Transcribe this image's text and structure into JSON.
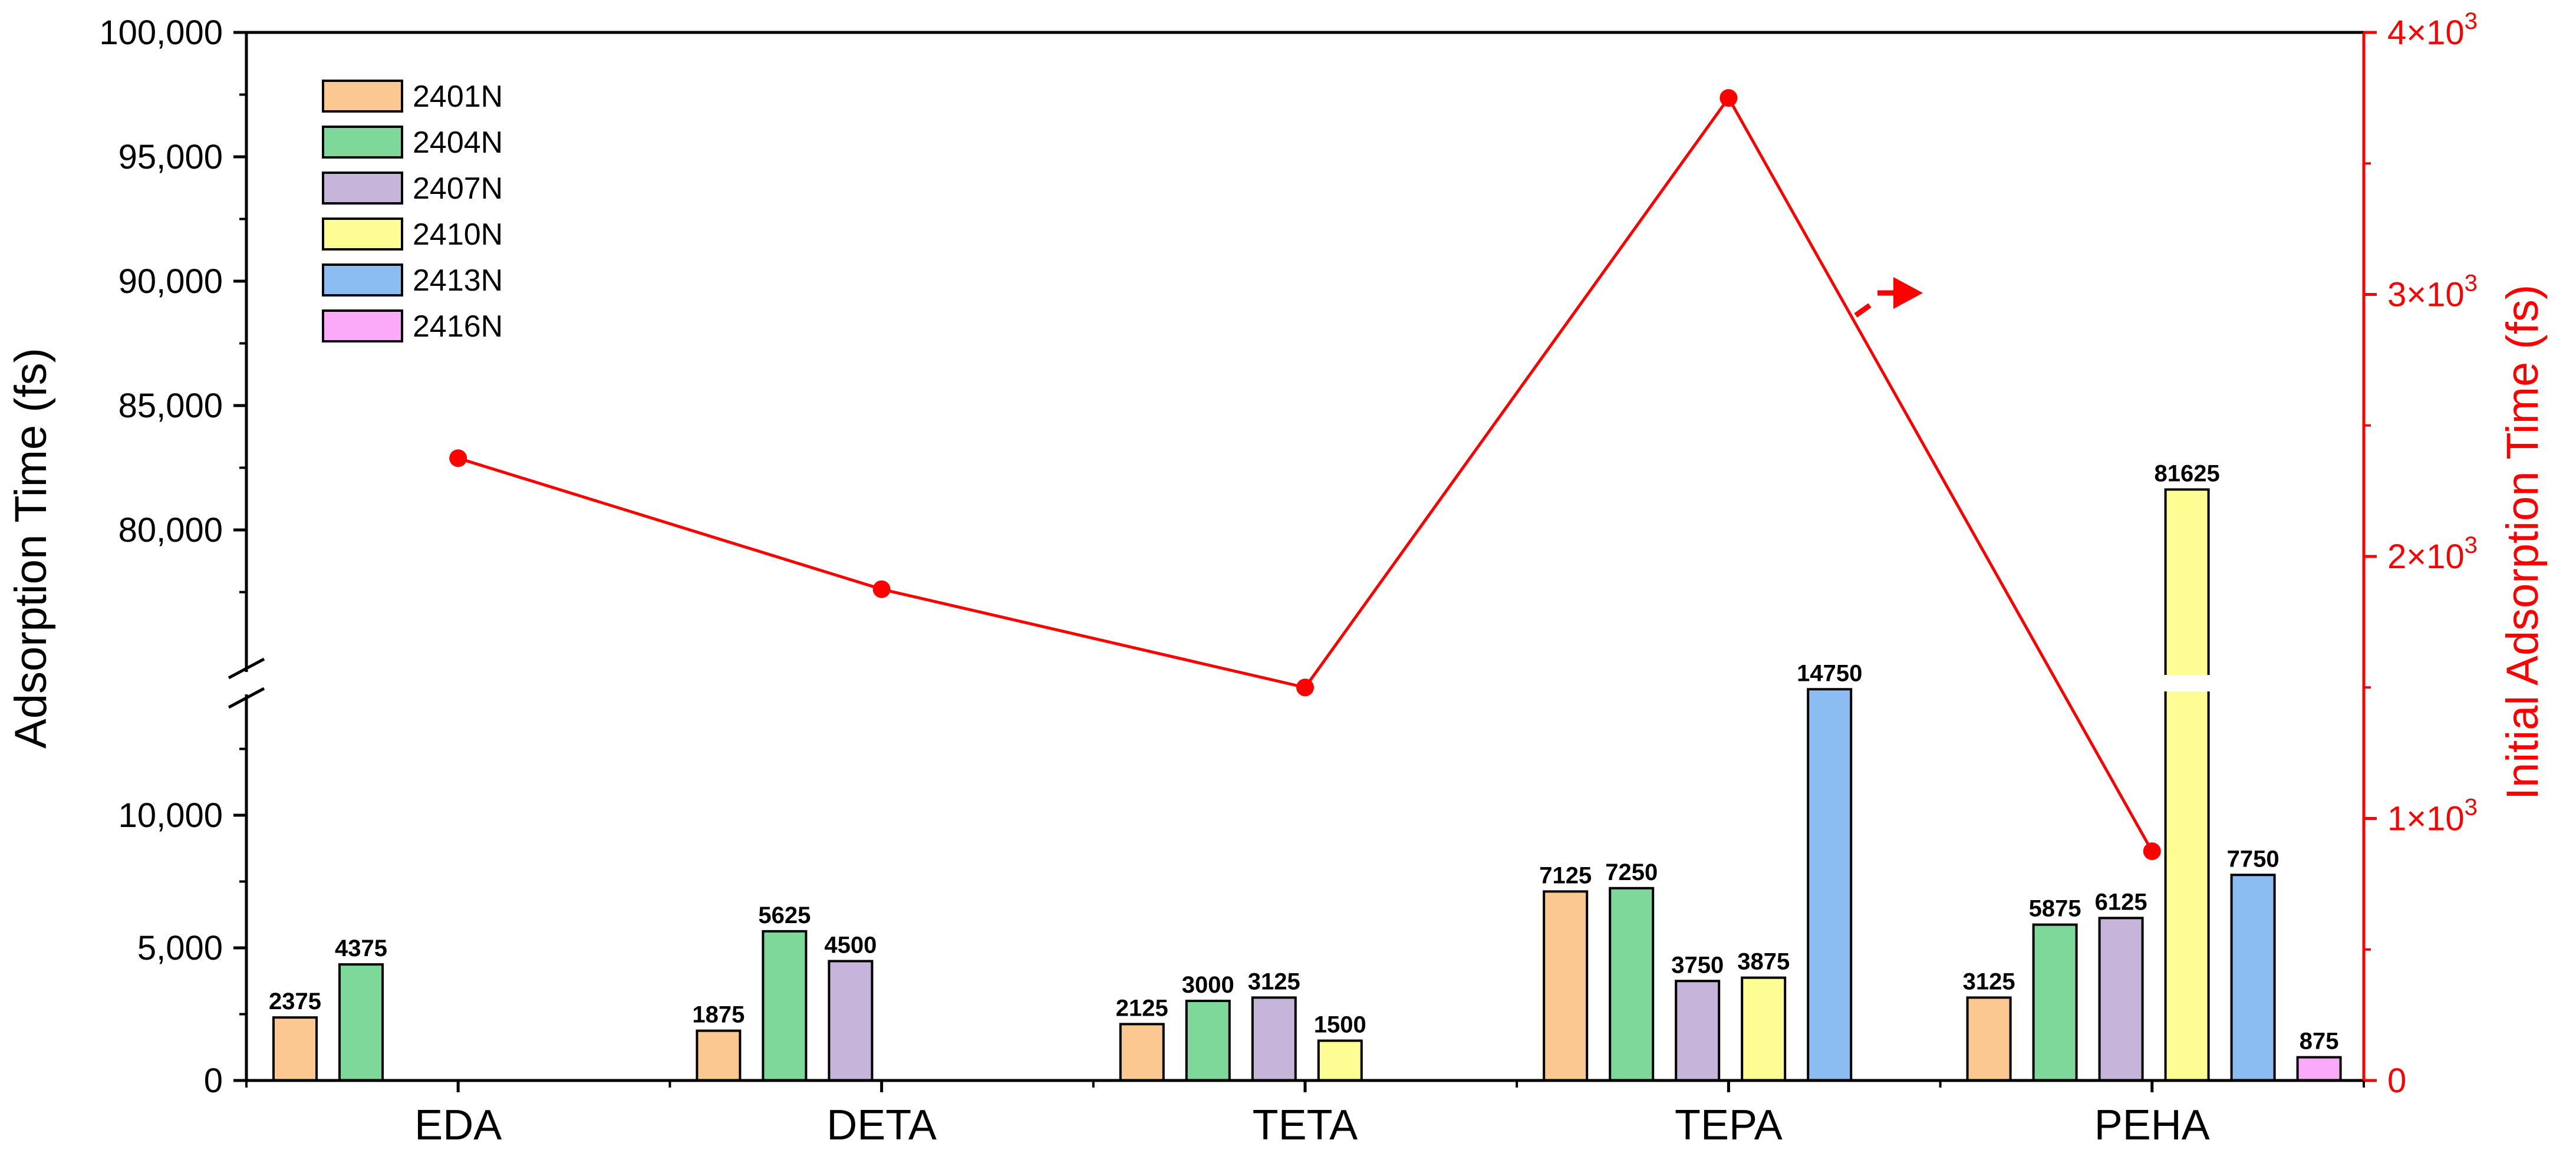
{
  "chart_data": {
    "type": "bar",
    "categories": [
      "EDA",
      "DETA",
      "TETA",
      "TEPA",
      "PEHA"
    ],
    "ylabel": "Adsorption Time (fs)",
    "y2label": "Initial Adsorption Time (fs)",
    "y_lower_range": [
      0,
      15000
    ],
    "y_upper_range": [
      75000,
      100000
    ],
    "y2_range": [
      0,
      4000
    ],
    "left_ticks": [
      {
        "value": 0,
        "label": "0"
      },
      {
        "value": 5000,
        "label": "5,000"
      },
      {
        "value": 10000,
        "label": "10,000"
      },
      {
        "value": 80000,
        "label": "80,000"
      },
      {
        "value": 85000,
        "label": "85,000"
      },
      {
        "value": 90000,
        "label": "90,000"
      },
      {
        "value": 95000,
        "label": "95,000"
      },
      {
        "value": 100000,
        "label": "100,000"
      }
    ],
    "right_ticks": [
      {
        "value": 0,
        "mantissa": "0",
        "exp": ""
      },
      {
        "value": 1000,
        "mantissa": "1×10",
        "exp": "3"
      },
      {
        "value": 2000,
        "mantissa": "2×10",
        "exp": "3"
      },
      {
        "value": 3000,
        "mantissa": "3×10",
        "exp": "3"
      },
      {
        "value": 4000,
        "mantissa": "4×10",
        "exp": "3"
      }
    ],
    "series": [
      {
        "name": "2401N",
        "color": "#fcc891",
        "values": [
          2375,
          1875,
          2125,
          7125,
          3125
        ]
      },
      {
        "name": "2404N",
        "color": "#7dd89a",
        "values": [
          4375,
          5625,
          3000,
          7250,
          5875
        ]
      },
      {
        "name": "2407N",
        "color": "#c6b4da",
        "values": [
          null,
          4500,
          3125,
          3750,
          6125
        ]
      },
      {
        "name": "2410N",
        "color": "#fdfd93",
        "values": [
          null,
          null,
          1500,
          3875,
          81625
        ]
      },
      {
        "name": "2413N",
        "color": "#8cbdf2",
        "values": [
          null,
          null,
          null,
          14750,
          7750
        ]
      },
      {
        "name": "2416N",
        "color": "#fbaaf9",
        "values": [
          null,
          null,
          null,
          null,
          875
        ]
      }
    ],
    "line_series": {
      "name": "Initial Adsorption Time",
      "axis": "right",
      "color": "#ff0000",
      "values": [
        2375,
        1875,
        1500,
        3750,
        875
      ]
    }
  }
}
